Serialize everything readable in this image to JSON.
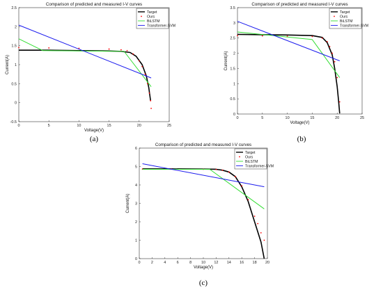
{
  "colors": {
    "target": "#000000",
    "ours": "#ff0000",
    "bilstm": "#33dd33",
    "transformer": "#1a1aee"
  },
  "chart_data": [
    {
      "type": "line",
      "caption": "(a)",
      "title": "Comparison of predicted and measured I-V curves",
      "xlabel": "Voltage(V)",
      "ylabel": "Current(A)",
      "xlim": [
        0,
        25
      ],
      "ylim": [
        -0.5,
        2.5
      ],
      "xticks": [
        "0",
        "5",
        "10",
        "15",
        "20",
        "25"
      ],
      "yticks": [
        "-0.5",
        "0",
        "0.5",
        "1",
        "1.5",
        "2",
        "2.5"
      ],
      "legend": "top-right",
      "series": [
        {
          "name": "Target",
          "style": "solid-thick",
          "x": [
            0,
            5,
            10,
            15,
            17,
            18.5,
            19.5,
            20.5,
            21.2,
            21.6,
            21.9
          ],
          "y": [
            1.38,
            1.38,
            1.37,
            1.36,
            1.35,
            1.32,
            1.22,
            1.0,
            0.7,
            0.4,
            0.05
          ]
        },
        {
          "name": "Ours",
          "style": "dots",
          "x": [
            0,
            5,
            10,
            15,
            17,
            18,
            19,
            20,
            20.5,
            21,
            21.4,
            21.7,
            21.9,
            22.0
          ],
          "y": [
            1.45,
            1.44,
            1.43,
            1.41,
            1.39,
            1.37,
            1.28,
            1.1,
            0.95,
            0.75,
            0.5,
            0.25,
            0.05,
            -0.15
          ]
        },
        {
          "name": "BiLSTM",
          "style": "solid",
          "x": [
            0,
            4,
            17.5,
            22
          ],
          "y": [
            1.68,
            1.37,
            1.35,
            0.42
          ]
        },
        {
          "name": "Transformer-SVM",
          "style": "solid",
          "x": [
            0,
            22
          ],
          "y": [
            2.04,
            0.65
          ]
        }
      ]
    },
    {
      "type": "line",
      "caption": "(b)",
      "title": "Comparison of predicted and measured I-V curves",
      "xlabel": "Voltage(V)",
      "ylabel": "Current(A)",
      "xlim": [
        0,
        25
      ],
      "ylim": [
        0,
        3.5
      ],
      "xticks": [
        "0",
        "5",
        "10",
        "15",
        "20",
        "25"
      ],
      "yticks": [
        "0",
        "0.5",
        "1",
        "1.5",
        "2",
        "2.5",
        "3",
        "3.5"
      ],
      "legend": "top-right",
      "series": [
        {
          "name": "Target",
          "style": "solid-thick",
          "x": [
            0,
            5,
            10,
            15,
            17,
            18,
            19,
            19.5,
            20,
            20.3,
            20.5
          ],
          "y": [
            2.62,
            2.61,
            2.6,
            2.58,
            2.52,
            2.35,
            1.95,
            1.5,
            0.9,
            0.4,
            0.02
          ]
        },
        {
          "name": "Ours",
          "style": "dots",
          "x": [
            0,
            5,
            10,
            15,
            17,
            18,
            18.5,
            19,
            19.5,
            20,
            20.5
          ],
          "y": [
            2.58,
            2.57,
            2.56,
            2.55,
            2.5,
            2.38,
            2.22,
            2.0,
            1.72,
            1.2,
            0.4
          ]
        },
        {
          "name": "BiLSTM",
          "style": "solid",
          "x": [
            0,
            15,
            20.5
          ],
          "y": [
            2.7,
            2.45,
            1.2
          ]
        },
        {
          "name": "Transformer-SVM",
          "style": "solid",
          "x": [
            0,
            20.5
          ],
          "y": [
            3.05,
            1.75
          ]
        }
      ]
    },
    {
      "type": "line",
      "caption": "(c)",
      "title": "Comparison of predicted and measured I-V curves",
      "xlabel": "Voltage(V)",
      "ylabel": "Current(A)",
      "xlim": [
        0,
        20
      ],
      "ylim": [
        0,
        6
      ],
      "xticks": [
        "0",
        "2",
        "4",
        "6",
        "8",
        "10",
        "12",
        "14",
        "16",
        "18",
        "20"
      ],
      "yticks": [
        "0",
        "1",
        "2",
        "3",
        "4",
        "5",
        "6"
      ],
      "legend": "top-right",
      "series": [
        {
          "name": "Target",
          "style": "solid-thick",
          "x": [
            0.5,
            5,
            10,
            12,
            13,
            14,
            15,
            16,
            17,
            18,
            19,
            19.5
          ],
          "y": [
            4.87,
            4.87,
            4.86,
            4.85,
            4.8,
            4.7,
            4.45,
            3.9,
            3.1,
            2.0,
            0.9,
            0.0
          ]
        },
        {
          "name": "Ours",
          "style": "dots",
          "x": [
            0.5,
            5,
            10,
            12,
            13,
            14,
            15,
            16,
            17,
            18,
            18.5,
            19,
            19.5
          ],
          "y": [
            4.86,
            4.86,
            4.85,
            4.84,
            4.8,
            4.7,
            4.45,
            3.95,
            3.2,
            2.3,
            1.9,
            1.4,
            1.0
          ]
        },
        {
          "name": "BiLSTM",
          "style": "solid",
          "x": [
            0.5,
            11,
            19.5
          ],
          "y": [
            4.85,
            4.85,
            2.7
          ]
        },
        {
          "name": "Transformer-SVM",
          "style": "solid",
          "x": [
            0.5,
            19.5
          ],
          "y": [
            5.15,
            3.9
          ]
        }
      ]
    }
  ]
}
